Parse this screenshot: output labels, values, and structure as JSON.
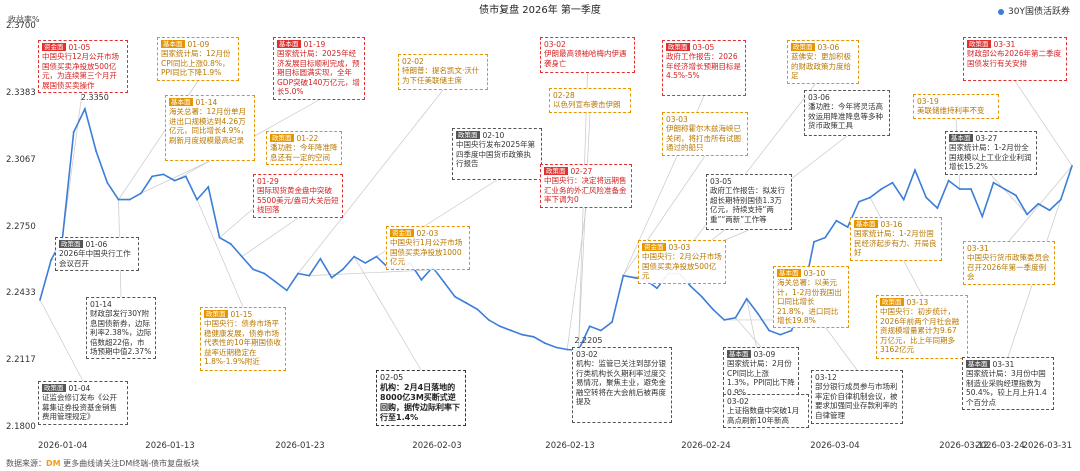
{
  "chart_data": {
    "type": "line",
    "title": "债市复盘 2026年 第一季度",
    "ylabel": "收益率%",
    "ylim": [
      2.18,
      2.37
    ],
    "yticks": [
      "2.3700",
      "2.3383",
      "2.3067",
      "2.2750",
      "2.2433",
      "2.2117",
      "2.1800"
    ],
    "xticks": [
      "2026-01-04",
      "2026-01-13",
      "2026-01-23",
      "2026-02-03",
      "2026-02-13",
      "2026-02-24",
      "2026-03-04",
      "2026-03-12",
      "2026-03-24",
      "2026-03-31"
    ],
    "series": [
      {
        "name": "30Y国债活跃券",
        "color": "#3b7dd8",
        "values": [
          2.2445,
          2.2635,
          2.2735,
          2.324,
          2.335,
          2.315,
          2.3,
          2.292,
          2.292,
          2.295,
          2.303,
          2.304,
          2.301,
          2.303,
          2.292,
          2.298,
          2.274,
          2.271,
          2.265,
          2.259,
          2.257,
          2.253,
          2.249,
          2.257,
          2.256,
          2.264,
          2.255,
          2.259,
          2.265,
          2.262,
          2.265,
          2.26,
          2.259,
          2.262,
          2.254,
          2.26,
          2.253,
          2.246,
          2.243,
          2.24,
          2.235,
          2.232,
          2.23,
          2.228,
          2.227,
          2.224,
          2.222,
          2.221,
          2.2205,
          2.232,
          2.23,
          2.234,
          2.256,
          2.255,
          2.254,
          2.25,
          2.257,
          2.257,
          2.251,
          2.246,
          2.24,
          2.235,
          2.236,
          2.245,
          2.238,
          2.23,
          2.228,
          2.23,
          2.246,
          2.272,
          2.274,
          2.282,
          2.279,
          2.291,
          2.293,
          2.297,
          2.3,
          2.292,
          2.306,
          2.293,
          2.288,
          2.301,
          2.297,
          2.297,
          2.284,
          2.3,
          2.297,
          2.294,
          2.285,
          2.29,
          2.287,
          2.292,
          2.308
        ]
      }
    ],
    "point_labels": [
      {
        "text": "2.3350",
        "index": 4
      },
      {
        "text": "2.2205",
        "index": 48
      }
    ],
    "legend": "top-right",
    "grid": false
  },
  "annotations": [
    {
      "tag": "资金面",
      "date": "01-05",
      "text": "中国央行12月公开市场国债买卖净投放500亿元，为连续第三个月开展国债买卖操作",
      "type": "red"
    },
    {
      "tag": "基本面",
      "date": "01-09",
      "text": "国家统计局：12月份CPI同比上涨0.8%，PPI同比下降1.9%",
      "type": "orange"
    },
    {
      "tag": "基本面",
      "date": "01-19",
      "text": "国家统计局：2025年经济发展目标顺利完成，预期目标圆满实现，全年GDP突破140万亿元，增长5.0%",
      "type": "red"
    },
    {
      "tag": "",
      "date": "02-02",
      "text": "特朗普：提名凯文·沃什为下任美联储主席",
      "type": "orange"
    },
    {
      "tag": "",
      "date": "03-02",
      "text": "伊朗最高领袖哈梅内伊遇袭身亡",
      "type": "red"
    },
    {
      "tag": "政策面",
      "date": "03-05",
      "text": "政府工作报告：2026年经济增长预期目标是4.5%-5%",
      "type": "red"
    },
    {
      "tag": "政策面",
      "date": "03-06",
      "text": "蓝佛安：更加积极的财政政策力度给足",
      "type": "orange"
    },
    {
      "tag": "政策面",
      "date": "03-31",
      "text": "财政部公布2026年第二季度国债发行有关安排",
      "type": "red"
    },
    {
      "tag": "基本面",
      "date": "01-14",
      "text": "海关总署：12月份单月进出口规模达到4.26万亿元，同比增长4.9%，刷新月度规模最高纪录",
      "type": "orange"
    },
    {
      "tag": "",
      "date": "02-28",
      "text": "以色列宣布袭击伊朗",
      "type": "orange"
    },
    {
      "tag": "",
      "date": "03-03",
      "text": "伊朗称霍尔木兹海峡已关闭，将打击所有试图通过的船只",
      "type": "orange"
    },
    {
      "tag": "",
      "date": "03-06",
      "text": "潘功胜：今年将灵活高效运用降准降息等多种货币政策工具",
      "type": "black"
    },
    {
      "tag": "",
      "date": "03-19",
      "text": "美联储维持利率不变",
      "type": "orange"
    },
    {
      "tag": "政策面",
      "date": "01-22",
      "text": "潘功胜：今年降准降息还有一定的空间",
      "type": "orange"
    },
    {
      "tag": "政策面",
      "date": "02-10",
      "text": "中国央行发布2025年第四季度中国货币政策执行报告",
      "type": "black"
    },
    {
      "tag": "基本面",
      "date": "03-27",
      "text": "国家统计局：1-2月份全国规模以上工业企业利润增长15.2%",
      "type": "black"
    },
    {
      "tag": "",
      "date": "01-29",
      "text": "国际现货黄金盘中突破5500美元/盎司大关后短线回落",
      "type": "red"
    },
    {
      "tag": "政策面",
      "date": "02-27",
      "text": "中国央行：决定将远期售汇业务的外汇风险准备金率下调为0",
      "type": "red"
    },
    {
      "tag": "",
      "date": "03-05",
      "text": "政府工作报告：拟发行超长期特别国债1.3万亿元，持续支持“两重”“两新”工作等",
      "type": "black"
    },
    {
      "tag": "资金面",
      "date": "02-03",
      "text": "中国央行1月公开市场国债买卖净投放1000亿元",
      "type": "orange"
    },
    {
      "tag": "资金面",
      "date": "03-03",
      "text": "中国央行：2月公开市场国债买卖净投放500亿元",
      "type": "orange"
    },
    {
      "tag": "基本面",
      "date": "03-16",
      "text": "国家统计局：1-2月份国民经济起步有力、开局良好",
      "type": "orange"
    },
    {
      "tag": "政策面",
      "date": "01-06",
      "text": "2026年中国央行工作会议召开",
      "type": "black"
    },
    {
      "tag": "",
      "date": "03-31",
      "text": "中国央行货币政策委员会召开2026年第一季度例会",
      "type": "orange"
    },
    {
      "tag": "基本面",
      "date": "03-10",
      "text": "海关总署：以美元计，1-2月份我国出口同比增长21.8%，进口同比增长19.8%",
      "type": "orange"
    },
    {
      "tag": "政策面",
      "date": "01-15",
      "text": "中国央行：债券市场平稳健康发展，债券市场代表性的10年期国债收益率近期稳定在1.8%-1.9%附近",
      "type": "orange"
    },
    {
      "tag": "政策面",
      "date": "03-13",
      "text": "中国央行：初步统计，2026年前两个月社会融资规模增量累计为9.67万亿元，比上年同期多3162亿元",
      "type": "orange"
    },
    {
      "tag": "",
      "date": "01-14",
      "text": "财政部发行30Y附息国债新券，边际利率2.38%，边际倍数超22倍，市场预期中值2.37%",
      "type": "black"
    },
    {
      "tag": "",
      "date": "03-02",
      "text": "机构：监管已关注到部分银行类机构长久期利率过度交易情况，聚焦主业，避免金融空转将在大会前后被再度提及",
      "type": "black"
    },
    {
      "tag": "基本面",
      "date": "03-09",
      "text": "国家统计局：2月份CPI同比上涨1.3%，PPI同比下降0.9%",
      "type": "black"
    },
    {
      "tag": "",
      "date": "03-12",
      "text": "部分银行成员参与市场利率定价自律机制会议，被要求加强同业存款利率的自律管理",
      "type": "black"
    },
    {
      "tag": "基本面",
      "date": "03-31",
      "text": "国家统计局：3月份中国制造业采购经理指数为50.4%，较上月上升1.4个百分点",
      "type": "black"
    },
    {
      "tag": "政策面",
      "date": "01-04",
      "text": "证监会修订发布《公开募集证券投资基金销售费用管理规定》",
      "type": "black"
    },
    {
      "tag": "",
      "date": "02-05",
      "text": "机构：2月4日落地的8000亿3M买断式逆回购，据传边际利率下行至1.4%",
      "type": "navy"
    },
    {
      "tag": "",
      "date": "03-02",
      "text": "上证指数盘中突破1月高点刷新10年新高",
      "type": "black"
    }
  ],
  "footer": {
    "prefix": "数据来源：",
    "brand": "DM",
    "text": "更多曲线请关注DM终端-债市复盘板块"
  }
}
